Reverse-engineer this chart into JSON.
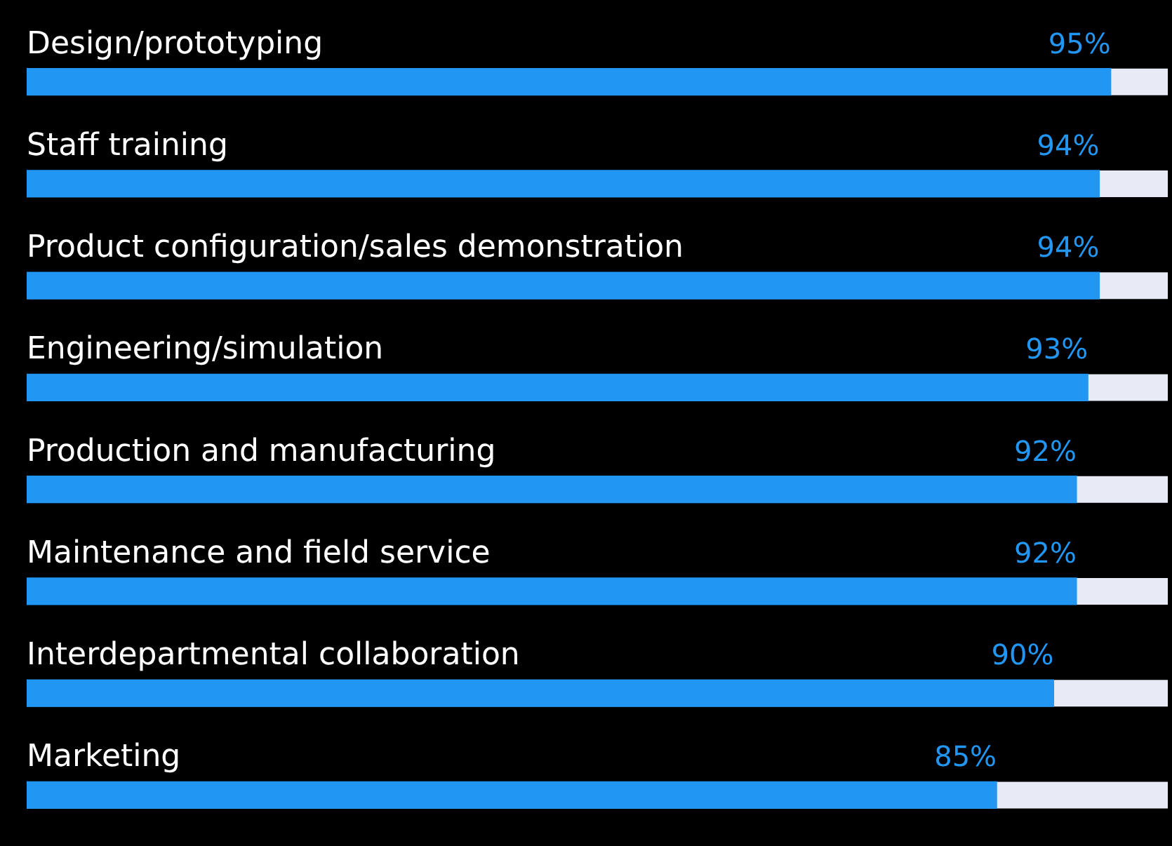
{
  "chart_data": {
    "type": "bar",
    "orientation": "horizontal",
    "categories": [
      "Design/prototyping",
      "Staff training",
      "Product configuration/sales demonstration",
      "Engineering/simulation",
      "Production and manufacturing",
      "Maintenance and field service",
      "Interdepartmental collaboration",
      "Marketing"
    ],
    "values": [
      95,
      94,
      94,
      93,
      92,
      92,
      90,
      85
    ],
    "value_labels": [
      "95%",
      "94%",
      "94%",
      "93%",
      "92%",
      "92%",
      "90%",
      "85%"
    ],
    "color": "#2196f3",
    "xlim": [
      0,
      100
    ],
    "tick_labels": false
  }
}
